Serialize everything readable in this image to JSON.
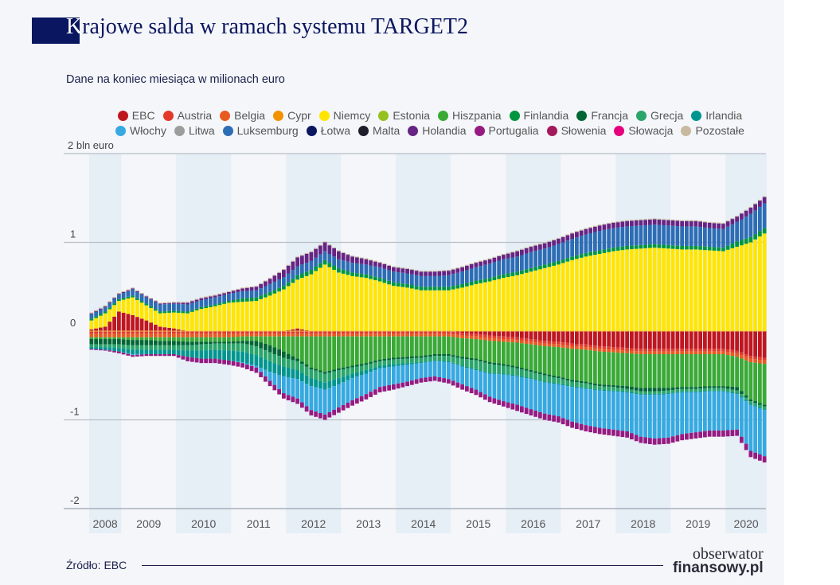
{
  "title_first": "K",
  "title_rest": "rajowe salda w ramach systemu TARGET2",
  "subtitle": "Dane na koniec miesiąca w milionach euro",
  "source": "Źródło: EBC",
  "logo": {
    "line1": "obserwator",
    "line2": "finansowy.pl"
  },
  "legend": [
    {
      "name": "EBC",
      "color": "#c0161f"
    },
    {
      "name": "Austria",
      "color": "#e4392a"
    },
    {
      "name": "Belgia",
      "color": "#e95a1e"
    },
    {
      "name": "Cypr",
      "color": "#f39200"
    },
    {
      "name": "Niemcy",
      "color": "#ffe500"
    },
    {
      "name": "Estonia",
      "color": "#95c11f"
    },
    {
      "name": "Hiszpania",
      "color": "#3aaa35"
    },
    {
      "name": "Finlandia",
      "color": "#009640"
    },
    {
      "name": "Francja",
      "color": "#006633"
    },
    {
      "name": "Grecja",
      "color": "#2aa66a"
    },
    {
      "name": "Irlandia",
      "color": "#00968f"
    },
    {
      "name": "Włochy",
      "color": "#36a9e1"
    },
    {
      "name": "Litwa",
      "color": "#9d9d9c"
    },
    {
      "name": "Luksemburg",
      "color": "#2d6db5"
    },
    {
      "name": "Łotwa",
      "color": "#0b1660"
    },
    {
      "name": "Malta",
      "color": "#1d1d2b"
    },
    {
      "name": "Holandia",
      "color": "#662483"
    },
    {
      "name": "Portugalia",
      "color": "#951b81"
    },
    {
      "name": "Słowenia",
      "color": "#a3195b"
    },
    {
      "name": "Słowacja",
      "color": "#e6007e"
    },
    {
      "name": "Pozostałe",
      "color": "#c8b9a0"
    }
  ],
  "chart_data": {
    "type": "bar",
    "stacked": true,
    "title": "Krajowe salda w ramach systemu TARGET2",
    "ylabel": "",
    "y_unit_label": "2 bln euro",
    "ylim": [
      -2,
      2
    ],
    "yticks": [
      "2 bln euro",
      "1",
      "0",
      "-1",
      "-2"
    ],
    "ytick_values": [
      2,
      1,
      0,
      -1,
      -2
    ],
    "xticks": [
      "2008",
      "2009",
      "2010",
      "2011",
      "2012",
      "2013",
      "2014",
      "2015",
      "2016",
      "2017",
      "2018",
      "2019",
      "2020"
    ],
    "grid": true,
    "legend_position": "top",
    "x": [
      "2008-Q2",
      "2008-Q3",
      "2008-Q4",
      "2009-Q1",
      "2009-Q2",
      "2009-Q3",
      "2009-Q4",
      "2010-Q1",
      "2010-Q2",
      "2010-Q3",
      "2010-Q4",
      "2011-Q1",
      "2011-Q2",
      "2011-Q3",
      "2011-Q4",
      "2012-Q1",
      "2012-Q2",
      "2012-Q3",
      "2012-Q4",
      "2013-Q1",
      "2013-Q2",
      "2013-Q3",
      "2013-Q4",
      "2014-Q1",
      "2014-Q2",
      "2014-Q3",
      "2014-Q4",
      "2015-Q1",
      "2015-Q2",
      "2015-Q3",
      "2015-Q4",
      "2016-Q1",
      "2016-Q2",
      "2016-Q3",
      "2016-Q4",
      "2017-Q1",
      "2017-Q2",
      "2017-Q3",
      "2017-Q4",
      "2018-Q1",
      "2018-Q2",
      "2018-Q3",
      "2018-Q4",
      "2019-Q1",
      "2019-Q2",
      "2019-Q3",
      "2019-Q4",
      "2020-Q1",
      "2020-Q2",
      "2020-Q3"
    ],
    "series": [
      {
        "name": "EBC",
        "color": "#c0161f",
        "values": [
          0.02,
          0.05,
          0.22,
          0.18,
          0.12,
          0.05,
          0.03,
          0,
          0,
          0,
          0,
          0,
          0,
          0,
          0,
          0.03,
          0,
          0,
          0,
          0,
          0,
          0,
          0,
          0,
          0,
          0,
          0,
          -0.02,
          -0.03,
          -0.05,
          -0.06,
          -0.07,
          -0.09,
          -0.11,
          -0.12,
          -0.14,
          -0.15,
          -0.17,
          -0.18,
          -0.19,
          -0.2,
          -0.2,
          -0.2,
          -0.2,
          -0.2,
          -0.2,
          -0.2,
          -0.22,
          -0.28,
          -0.3
        ]
      },
      {
        "name": "Austria",
        "color": "#e4392a",
        "values": [
          -0.03,
          -0.03,
          -0.03,
          -0.03,
          -0.03,
          -0.03,
          -0.03,
          -0.03,
          -0.03,
          -0.03,
          -0.03,
          -0.03,
          -0.03,
          -0.03,
          -0.03,
          -0.03,
          -0.03,
          -0.03,
          -0.03,
          -0.03,
          -0.03,
          -0.03,
          -0.03,
          -0.03,
          -0.03,
          -0.03,
          -0.03,
          -0.03,
          -0.03,
          -0.03,
          -0.03,
          -0.03,
          -0.03,
          -0.03,
          -0.03,
          -0.03,
          -0.03,
          -0.03,
          -0.03,
          -0.03,
          -0.03,
          -0.03,
          -0.03,
          -0.03,
          -0.03,
          -0.03,
          -0.03,
          -0.03,
          -0.03,
          -0.03
        ]
      },
      {
        "name": "Belgia",
        "color": "#e95a1e",
        "values": [
          -0.04,
          -0.04,
          -0.04,
          -0.04,
          -0.04,
          -0.04,
          -0.04,
          -0.04,
          -0.04,
          -0.04,
          -0.04,
          -0.03,
          -0.03,
          -0.03,
          -0.03,
          -0.03,
          -0.03,
          -0.03,
          -0.03,
          -0.03,
          -0.03,
          -0.03,
          -0.03,
          -0.03,
          -0.03,
          -0.03,
          -0.03,
          -0.03,
          -0.03,
          -0.03,
          -0.03,
          -0.03,
          -0.03,
          -0.03,
          -0.03,
          -0.03,
          -0.03,
          -0.03,
          -0.03,
          -0.03,
          -0.03,
          -0.03,
          -0.03,
          -0.03,
          -0.03,
          -0.03,
          -0.03,
          -0.04,
          -0.04,
          -0.04
        ]
      },
      {
        "name": "Niemcy",
        "color": "#ffe500",
        "values": [
          0.1,
          0.15,
          0.12,
          0.2,
          0.17,
          0.15,
          0.18,
          0.2,
          0.25,
          0.28,
          0.32,
          0.33,
          0.34,
          0.4,
          0.47,
          0.55,
          0.64,
          0.75,
          0.66,
          0.62,
          0.6,
          0.56,
          0.51,
          0.49,
          0.46,
          0.46,
          0.46,
          0.49,
          0.53,
          0.56,
          0.6,
          0.63,
          0.67,
          0.71,
          0.75,
          0.8,
          0.84,
          0.87,
          0.9,
          0.92,
          0.93,
          0.94,
          0.93,
          0.92,
          0.92,
          0.91,
          0.9,
          0.95,
          1.0,
          1.1
        ]
      },
      {
        "name": "Hiszpania",
        "color": "#3aaa35",
        "values": [
          -0.02,
          -0.02,
          -0.02,
          -0.03,
          -0.03,
          -0.04,
          -0.04,
          -0.05,
          -0.05,
          -0.05,
          -0.05,
          -0.05,
          -0.05,
          -0.1,
          -0.17,
          -0.25,
          -0.35,
          -0.4,
          -0.36,
          -0.33,
          -0.3,
          -0.26,
          -0.24,
          -0.23,
          -0.22,
          -0.2,
          -0.2,
          -0.21,
          -0.22,
          -0.24,
          -0.25,
          -0.27,
          -0.29,
          -0.31,
          -0.33,
          -0.35,
          -0.36,
          -0.37,
          -0.37,
          -0.37,
          -0.38,
          -0.38,
          -0.38,
          -0.37,
          -0.37,
          -0.36,
          -0.36,
          -0.34,
          -0.42,
          -0.46
        ]
      },
      {
        "name": "Finlandia",
        "color": "#009640",
        "values": [
          0.02,
          0.02,
          0.02,
          0.02,
          0.02,
          0.02,
          0.02,
          0.02,
          0.02,
          0.02,
          0.02,
          0.04,
          0.04,
          0.04,
          0.04,
          0.05,
          0.05,
          0.05,
          0.05,
          0.04,
          0.04,
          0.04,
          0.04,
          0.04,
          0.04,
          0.04,
          0.04,
          0.04,
          0.04,
          0.04,
          0.04,
          0.04,
          0.04,
          0.04,
          0.04,
          0.04,
          0.04,
          0.04,
          0.04,
          0.04,
          0.04,
          0.04,
          0.04,
          0.04,
          0.04,
          0.04,
          0.04,
          0.06,
          0.06,
          0.06
        ]
      },
      {
        "name": "Francja",
        "color": "#006633",
        "values": [
          -0.06,
          -0.06,
          -0.06,
          -0.06,
          -0.06,
          -0.05,
          -0.05,
          -0.04,
          -0.03,
          -0.02,
          -0.02,
          -0.03,
          -0.06,
          -0.08,
          -0.07,
          -0.03,
          -0.02,
          -0.02,
          -0.02,
          -0.02,
          -0.02,
          -0.02,
          -0.02,
          -0.02,
          -0.02,
          -0.02,
          -0.02,
          -0.02,
          -0.02,
          -0.02,
          -0.02,
          -0.02,
          -0.02,
          -0.02,
          -0.02,
          -0.02,
          -0.02,
          -0.02,
          -0.02,
          -0.03,
          -0.04,
          -0.04,
          -0.03,
          -0.02,
          -0.02,
          -0.02,
          -0.02,
          -0.04,
          -0.02,
          -0.02
        ]
      },
      {
        "name": "Grecja",
        "color": "#2aa66a",
        "values": [
          -0.03,
          -0.03,
          -0.04,
          -0.05,
          -0.05,
          -0.05,
          -0.05,
          -0.06,
          -0.07,
          -0.07,
          -0.08,
          -0.09,
          -0.1,
          -0.1,
          -0.1,
          -0.1,
          -0.1,
          -0.1,
          -0.09,
          -0.07,
          -0.06,
          -0.05,
          -0.05,
          -0.05,
          -0.05,
          -0.05,
          -0.06,
          -0.08,
          -0.1,
          -0.1,
          -0.09,
          -0.08,
          -0.07,
          -0.07,
          -0.06,
          -0.05,
          -0.05,
          -0.04,
          -0.04,
          -0.03,
          -0.03,
          -0.03,
          -0.03,
          -0.03,
          -0.03,
          -0.03,
          -0.03,
          -0.03,
          -0.03,
          -0.03
        ]
      },
      {
        "name": "Irlandia",
        "color": "#00968f",
        "values": [
          -0.02,
          -0.03,
          -0.04,
          -0.05,
          -0.05,
          -0.05,
          -0.05,
          -0.07,
          -0.09,
          -0.1,
          -0.11,
          -0.12,
          -0.12,
          -0.12,
          -0.11,
          -0.1,
          -0.09,
          -0.08,
          -0.07,
          -0.05,
          -0.04,
          -0.03,
          -0.03,
          -0.02,
          -0.01,
          -0.01,
          -0.01,
          -0.01,
          -0.01,
          -0.01,
          -0.01,
          -0.01,
          -0.01,
          -0.01,
          -0.01,
          -0.01,
          -0.01,
          -0.01,
          -0.01,
          -0.01,
          -0.01,
          -0.01,
          -0.01,
          -0.01,
          -0.01,
          -0.01,
          -0.01,
          -0.01,
          -0.01,
          -0.01
        ]
      },
      {
        "name": "Włochy",
        "color": "#36a9e1",
        "values": [
          0,
          0,
          0,
          -0.01,
          0,
          0,
          0,
          0,
          0,
          0,
          0,
          -0.01,
          -0.02,
          -0.1,
          -0.19,
          -0.22,
          -0.27,
          -0.28,
          -0.26,
          -0.25,
          -0.23,
          -0.21,
          -0.2,
          -0.19,
          -0.17,
          -0.17,
          -0.19,
          -0.2,
          -0.22,
          -0.26,
          -0.3,
          -0.32,
          -0.34,
          -0.35,
          -0.36,
          -0.39,
          -0.41,
          -0.42,
          -0.43,
          -0.44,
          -0.47,
          -0.49,
          -0.49,
          -0.47,
          -0.45,
          -0.44,
          -0.44,
          -0.4,
          -0.52,
          -0.52
        ]
      },
      {
        "name": "Luksemburg",
        "color": "#2d6db5",
        "values": [
          0.05,
          0.05,
          0.05,
          0.07,
          0.07,
          0.08,
          0.08,
          0.08,
          0.08,
          0.08,
          0.08,
          0.08,
          0.08,
          0.09,
          0.1,
          0.1,
          0.1,
          0.1,
          0.1,
          0.11,
          0.11,
          0.12,
          0.12,
          0.12,
          0.12,
          0.12,
          0.13,
          0.14,
          0.15,
          0.16,
          0.17,
          0.17,
          0.18,
          0.18,
          0.19,
          0.2,
          0.21,
          0.22,
          0.22,
          0.22,
          0.22,
          0.22,
          0.22,
          0.22,
          0.22,
          0.21,
          0.21,
          0.22,
          0.26,
          0.28
        ]
      },
      {
        "name": "Holandia",
        "color": "#662483",
        "values": [
          0.01,
          0.01,
          0.01,
          0.01,
          0.01,
          0.01,
          0.01,
          0.02,
          0.02,
          0.02,
          0.02,
          0.03,
          0.04,
          0.06,
          0.08,
          0.1,
          0.1,
          0.1,
          0.09,
          0.07,
          0.06,
          0.05,
          0.05,
          0.05,
          0.05,
          0.05,
          0.05,
          0.05,
          0.05,
          0.05,
          0.05,
          0.06,
          0.06,
          0.06,
          0.06,
          0.06,
          0.06,
          0.06,
          0.06,
          0.06,
          0.06,
          0.06,
          0.06,
          0.06,
          0.06,
          0.06,
          0.06,
          0.06,
          0.07,
          0.07
        ]
      },
      {
        "name": "Portugalia",
        "color": "#951b81",
        "values": [
          -0.01,
          -0.01,
          -0.02,
          -0.02,
          -0.02,
          -0.02,
          -0.02,
          -0.05,
          -0.05,
          -0.05,
          -0.05,
          -0.05,
          -0.06,
          -0.06,
          -0.06,
          -0.06,
          -0.06,
          -0.06,
          -0.06,
          -0.06,
          -0.06,
          -0.06,
          -0.06,
          -0.05,
          -0.05,
          -0.05,
          -0.05,
          -0.06,
          -0.06,
          -0.06,
          -0.06,
          -0.07,
          -0.07,
          -0.07,
          -0.07,
          -0.07,
          -0.07,
          -0.07,
          -0.07,
          -0.07,
          -0.07,
          -0.07,
          -0.07,
          -0.07,
          -0.07,
          -0.07,
          -0.07,
          -0.07,
          -0.07,
          -0.07
        ]
      },
      {
        "name": "Pozostałe",
        "color": "#c8b9a0",
        "values": [
          0.01,
          0.01,
          0.01,
          0.01,
          0.01,
          0.01,
          0.01,
          0.01,
          0.01,
          0.01,
          0.01,
          0.01,
          0.01,
          0.01,
          0.01,
          0.01,
          0.01,
          0.01,
          0.01,
          0.01,
          0.01,
          0.01,
          0.01,
          0.01,
          0.01,
          0.01,
          0.01,
          0.01,
          0.01,
          0.01,
          0.01,
          0.01,
          0.01,
          0.01,
          0.01,
          0.01,
          0.01,
          0.01,
          0.01,
          0.01,
          0.01,
          0.01,
          0.01,
          0.01,
          0.01,
          0.01,
          0.01,
          0.01,
          0.01,
          0.01
        ]
      }
    ]
  }
}
